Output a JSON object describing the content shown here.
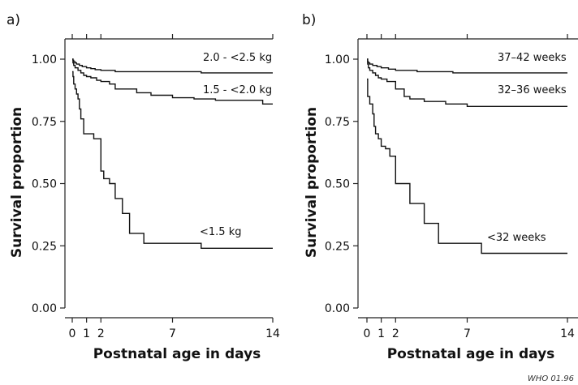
{
  "credit": "WHO 01.96",
  "chart_data": [
    {
      "type": "line",
      "panel_label": "a)",
      "xlabel": "Postnatal age in days",
      "ylabel": "Survival proportion",
      "xlim": [
        0,
        14
      ],
      "ylim": [
        0,
        1
      ],
      "x_ticks": [
        0,
        1,
        2,
        7,
        14
      ],
      "y_ticks": [
        "0.00",
        "0.25",
        "0.50",
        "0.75",
        "1.00"
      ],
      "grid": false,
      "series": [
        {
          "name": "2.0 - <2.5 kg",
          "x": [
            0,
            0.05,
            0.1,
            0.2,
            0.3,
            0.5,
            0.7,
            1,
            1.3,
            1.6,
            2,
            3,
            9,
            14
          ],
          "y": [
            1,
            0.995,
            0.99,
            0.985,
            0.98,
            0.975,
            0.97,
            0.965,
            0.962,
            0.958,
            0.955,
            0.95,
            0.945,
            0.945
          ]
        },
        {
          "name": "1.5 - <2.0 kg",
          "x": [
            0,
            0.05,
            0.1,
            0.2,
            0.4,
            0.6,
            0.8,
            1,
            1.3,
            1.7,
            2,
            2.6,
            3,
            4.5,
            5.5,
            7,
            8.5,
            10,
            13.3,
            14
          ],
          "y": [
            1,
            0.985,
            0.975,
            0.965,
            0.955,
            0.945,
            0.935,
            0.93,
            0.925,
            0.915,
            0.91,
            0.9,
            0.88,
            0.865,
            0.855,
            0.845,
            0.84,
            0.835,
            0.82,
            0.82
          ]
        },
        {
          "name": "<1.5 kg",
          "x": [
            0,
            0.05,
            0.1,
            0.2,
            0.3,
            0.4,
            0.5,
            0.6,
            0.8,
            1,
            1.5,
            2,
            2.2,
            2.6,
            3,
            3.5,
            4,
            5,
            9,
            14
          ],
          "y": [
            0.95,
            0.93,
            0.9,
            0.88,
            0.86,
            0.84,
            0.8,
            0.76,
            0.7,
            0.7,
            0.68,
            0.55,
            0.52,
            0.5,
            0.44,
            0.38,
            0.3,
            0.26,
            0.24,
            0.24
          ]
        }
      ]
    },
    {
      "type": "line",
      "panel_label": "b)",
      "xlabel": "Postnatal age in days",
      "ylabel": "Survival proportion",
      "xlim": [
        0,
        14
      ],
      "ylim": [
        0,
        1
      ],
      "x_ticks": [
        0,
        1,
        2,
        7,
        14
      ],
      "y_ticks": [
        "0.00",
        "0.25",
        "0.50",
        "0.75",
        "1.00"
      ],
      "grid": false,
      "series": [
        {
          "name": "37–42 weeks",
          "x": [
            0,
            0.05,
            0.1,
            0.2,
            0.4,
            0.7,
            1,
            1.5,
            2,
            3.5,
            6,
            14
          ],
          "y": [
            1,
            0.99,
            0.985,
            0.98,
            0.975,
            0.97,
            0.965,
            0.96,
            0.955,
            0.95,
            0.945,
            0.945
          ]
        },
        {
          "name": "32–36 weeks",
          "x": [
            0,
            0.05,
            0.1,
            0.2,
            0.4,
            0.6,
            0.8,
            1,
            1.4,
            2,
            2.6,
            3,
            4,
            5.5,
            7,
            14
          ],
          "y": [
            1,
            0.98,
            0.965,
            0.955,
            0.945,
            0.935,
            0.925,
            0.92,
            0.91,
            0.88,
            0.85,
            0.84,
            0.83,
            0.82,
            0.81,
            0.81
          ]
        },
        {
          "name": "<32 weeks",
          "x": [
            0,
            0.05,
            0.2,
            0.4,
            0.5,
            0.6,
            0.8,
            1,
            1.3,
            1.6,
            2,
            3,
            4,
            5,
            8,
            14
          ],
          "y": [
            0.92,
            0.85,
            0.82,
            0.78,
            0.73,
            0.7,
            0.68,
            0.65,
            0.64,
            0.61,
            0.5,
            0.42,
            0.34,
            0.26,
            0.22,
            0.22
          ]
        }
      ]
    }
  ]
}
